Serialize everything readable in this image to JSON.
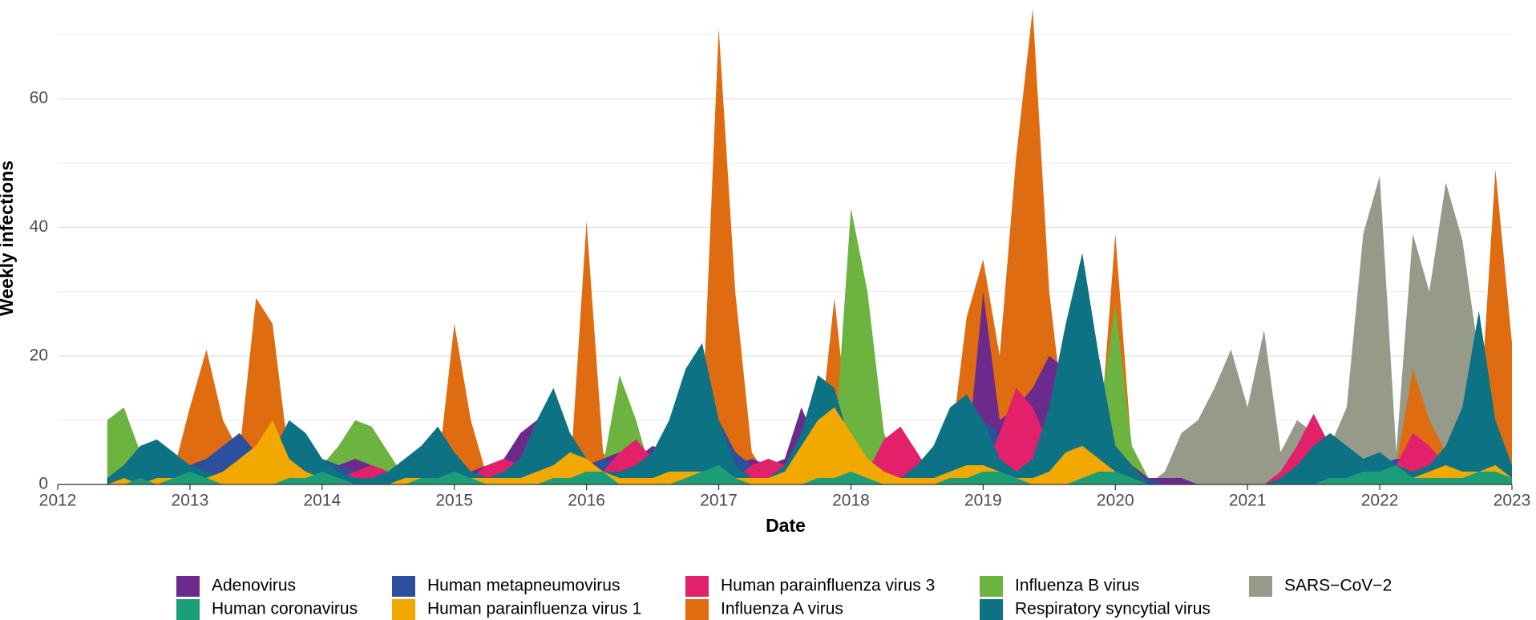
{
  "chart_data": {
    "type": "area",
    "x_label": "Date",
    "y_label": "Weekly infections",
    "x": [
      2012.375,
      2012.5,
      2012.625,
      2012.75,
      2012.875,
      2013,
      2013.125,
      2013.25,
      2013.375,
      2013.5,
      2013.625,
      2013.75,
      2013.875,
      2014,
      2014.125,
      2014.25,
      2014.375,
      2014.5,
      2014.625,
      2014.75,
      2014.875,
      2015,
      2015.125,
      2015.25,
      2015.375,
      2015.5,
      2015.625,
      2015.75,
      2015.875,
      2016,
      2016.125,
      2016.25,
      2016.375,
      2016.5,
      2016.625,
      2016.75,
      2016.875,
      2017,
      2017.125,
      2017.25,
      2017.375,
      2017.5,
      2017.625,
      2017.75,
      2017.875,
      2018,
      2018.125,
      2018.25,
      2018.375,
      2018.5,
      2018.625,
      2018.75,
      2018.875,
      2019,
      2019.125,
      2019.25,
      2019.375,
      2019.5,
      2019.625,
      2019.75,
      2019.875,
      2020,
      2020.125,
      2020.25,
      2020.375,
      2020.5,
      2020.625,
      2020.75,
      2020.875,
      2021,
      2021.125,
      2021.25,
      2021.375,
      2021.5,
      2021.625,
      2021.75,
      2021.875,
      2022,
      2022.125,
      2022.25,
      2022.375,
      2022.5,
      2022.625,
      2022.75,
      2022.875,
      2023
    ],
    "series": [
      {
        "name": "Adenovirus",
        "color": "#6c2a8c",
        "values": [
          1,
          2,
          1,
          2,
          2,
          2,
          3,
          2,
          4,
          3,
          4,
          2,
          3,
          2,
          3,
          4,
          3,
          2,
          1,
          1,
          0,
          1,
          2,
          3,
          4,
          8,
          10,
          6,
          3,
          3,
          4,
          5,
          4,
          6,
          5,
          7,
          6,
          5,
          3,
          4,
          3,
          4,
          12,
          6,
          3,
          2,
          3,
          2,
          1,
          2,
          3,
          2,
          3,
          30,
          10,
          12,
          15,
          20,
          18,
          10,
          7,
          6,
          3,
          1,
          1,
          1,
          0,
          0,
          0,
          0,
          0,
          0,
          0,
          1,
          1,
          1,
          1,
          1,
          1,
          2,
          1,
          2,
          1,
          2,
          1,
          1
        ]
      },
      {
        "name": "Human coronavirus",
        "color": "#1b9e77",
        "values": [
          0,
          0,
          1,
          0,
          1,
          2,
          1,
          0,
          0,
          0,
          0,
          1,
          1,
          2,
          1,
          0,
          0,
          0,
          0,
          1,
          1,
          2,
          1,
          0,
          0,
          0,
          0,
          1,
          1,
          2,
          2,
          0,
          0,
          0,
          0,
          1,
          2,
          3,
          1,
          0,
          0,
          0,
          0,
          1,
          1,
          2,
          1,
          0,
          0,
          0,
          0,
          1,
          1,
          2,
          2,
          1,
          0,
          0,
          0,
          1,
          2,
          2,
          1,
          0,
          0,
          0,
          0,
          0,
          0,
          0,
          0,
          0,
          0,
          0,
          1,
          1,
          2,
          2,
          3,
          1,
          1,
          1,
          1,
          2,
          2,
          1
        ]
      },
      {
        "name": "Human metapneumovirus",
        "color": "#2c4f9e",
        "values": [
          1,
          1,
          2,
          1,
          1,
          3,
          4,
          6,
          8,
          5,
          3,
          2,
          3,
          4,
          3,
          2,
          1,
          1,
          0,
          1,
          2,
          3,
          2,
          2,
          1,
          1,
          1,
          1,
          2,
          3,
          4,
          3,
          2,
          2,
          3,
          8,
          15,
          10,
          5,
          3,
          1,
          1,
          1,
          2,
          3,
          3,
          2,
          2,
          1,
          1,
          2,
          8,
          12,
          10,
          8,
          6,
          4,
          2,
          1,
          2,
          3,
          3,
          2,
          1,
          0,
          0,
          0,
          0,
          0,
          0,
          0,
          0,
          0,
          1,
          2,
          3,
          3,
          3,
          4,
          4,
          5,
          3,
          2,
          2,
          3,
          2
        ]
      },
      {
        "name": "Human parainfluenza virus 1",
        "color": "#f1a900",
        "values": [
          0,
          1,
          0,
          1,
          1,
          1,
          1,
          2,
          4,
          6,
          10,
          4,
          2,
          1,
          1,
          0,
          0,
          0,
          1,
          1,
          1,
          1,
          1,
          1,
          1,
          1,
          2,
          3,
          5,
          4,
          2,
          1,
          1,
          1,
          2,
          2,
          2,
          2,
          1,
          1,
          1,
          2,
          6,
          10,
          12,
          8,
          4,
          2,
          1,
          1,
          1,
          2,
          3,
          3,
          2,
          1,
          1,
          2,
          5,
          6,
          4,
          2,
          1,
          0,
          0,
          0,
          0,
          0,
          0,
          0,
          0,
          0,
          0,
          0,
          1,
          1,
          1,
          1,
          1,
          1,
          2,
          3,
          2,
          2,
          3,
          1
        ]
      },
      {
        "name": "Human parainfluenza virus 3",
        "color": "#e2216a",
        "values": [
          1,
          1,
          0,
          0,
          0,
          0,
          1,
          2,
          3,
          2,
          1,
          0,
          0,
          0,
          1,
          2,
          3,
          2,
          1,
          0,
          0,
          0,
          1,
          3,
          4,
          3,
          1,
          0,
          0,
          0,
          2,
          5,
          7,
          4,
          1,
          0,
          0,
          0,
          1,
          3,
          4,
          3,
          1,
          0,
          0,
          0,
          2,
          7,
          9,
          5,
          1,
          0,
          0,
          2,
          8,
          15,
          12,
          6,
          2,
          0,
          0,
          0,
          0,
          0,
          0,
          0,
          0,
          0,
          0,
          0,
          0,
          2,
          6,
          11,
          6,
          2,
          1,
          1,
          3,
          8,
          6,
          3,
          1,
          1,
          1,
          0
        ]
      },
      {
        "name": "Influenza A virus",
        "color": "#e06c12",
        "values": [
          0,
          0,
          0,
          0,
          2,
          12,
          21,
          10,
          5,
          29,
          25,
          4,
          1,
          1,
          4,
          2,
          1,
          0,
          0,
          0,
          2,
          25,
          10,
          1,
          0,
          0,
          0,
          0,
          1,
          41,
          5,
          1,
          0,
          0,
          1,
          3,
          10,
          71,
          30,
          5,
          1,
          0,
          1,
          5,
          29,
          5,
          1,
          0,
          0,
          0,
          1,
          5,
          26,
          35,
          20,
          51,
          74,
          30,
          8,
          3,
          5,
          39,
          5,
          0,
          0,
          0,
          0,
          0,
          0,
          0,
          0,
          0,
          0,
          0,
          0,
          0,
          1,
          2,
          3,
          18,
          10,
          5,
          3,
          8,
          49,
          22
        ]
      },
      {
        "name": "Influenza B virus",
        "color": "#6db33f",
        "values": [
          10,
          12,
          5,
          4,
          5,
          3,
          2,
          1,
          0,
          0,
          0,
          0,
          2,
          3,
          6,
          10,
          9,
          5,
          1,
          0,
          0,
          1,
          2,
          1,
          0,
          0,
          0,
          0,
          0,
          1,
          3,
          17,
          10,
          1,
          0,
          0,
          1,
          1,
          2,
          2,
          1,
          0,
          0,
          1,
          5,
          43,
          30,
          8,
          2,
          0,
          0,
          1,
          2,
          3,
          4,
          5,
          2,
          0,
          0,
          1,
          10,
          28,
          6,
          1,
          0,
          0,
          0,
          0,
          0,
          0,
          0,
          0,
          0,
          0,
          0,
          0,
          0,
          0,
          0,
          1,
          1,
          1,
          0,
          0,
          0,
          0
        ]
      },
      {
        "name": "Respiratory syncytial virus",
        "color": "#0e7285",
        "values": [
          1,
          3,
          6,
          7,
          5,
          3,
          2,
          1,
          1,
          3,
          5,
          10,
          8,
          4,
          2,
          1,
          1,
          2,
          4,
          6,
          9,
          5,
          2,
          1,
          2,
          4,
          10,
          15,
          8,
          4,
          2,
          2,
          3,
          5,
          10,
          18,
          22,
          10,
          3,
          1,
          1,
          3,
          8,
          17,
          15,
          6,
          2,
          1,
          1,
          3,
          6,
          12,
          14,
          10,
          4,
          2,
          4,
          12,
          25,
          36,
          20,
          6,
          3,
          0,
          0,
          0,
          0,
          0,
          0,
          0,
          0,
          1,
          3,
          6,
          8,
          6,
          4,
          5,
          3,
          2,
          3,
          6,
          12,
          27,
          10,
          3
        ]
      },
      {
        "name": "SARS−CoV−2",
        "color": "#959a89",
        "values": [
          0,
          0,
          0,
          0,
          0,
          0,
          0,
          0,
          0,
          0,
          0,
          0,
          0,
          0,
          0,
          0,
          0,
          0,
          0,
          0,
          0,
          0,
          0,
          0,
          0,
          0,
          0,
          0,
          0,
          0,
          0,
          0,
          0,
          0,
          0,
          0,
          0,
          0,
          0,
          0,
          0,
          0,
          0,
          0,
          0,
          0,
          0,
          0,
          0,
          0,
          0,
          0,
          0,
          0,
          0,
          0,
          0,
          0,
          0,
          0,
          0,
          0,
          0,
          0,
          2,
          8,
          10,
          15,
          21,
          12,
          24,
          5,
          10,
          8,
          6,
          12,
          39,
          48,
          5,
          39,
          30,
          47,
          38,
          20,
          10,
          11
        ]
      }
    ],
    "xlim": [
      2012,
      2023
    ],
    "xticks": [
      2012,
      2013,
      2014,
      2015,
      2016,
      2017,
      2018,
      2019,
      2020,
      2021,
      2022,
      2023
    ],
    "ylim": [
      0,
      74
    ],
    "yticks": [
      0,
      20,
      40,
      60
    ],
    "yminorticks": [
      10,
      30,
      50,
      70
    ],
    "grid": true,
    "legend": "bottom"
  }
}
